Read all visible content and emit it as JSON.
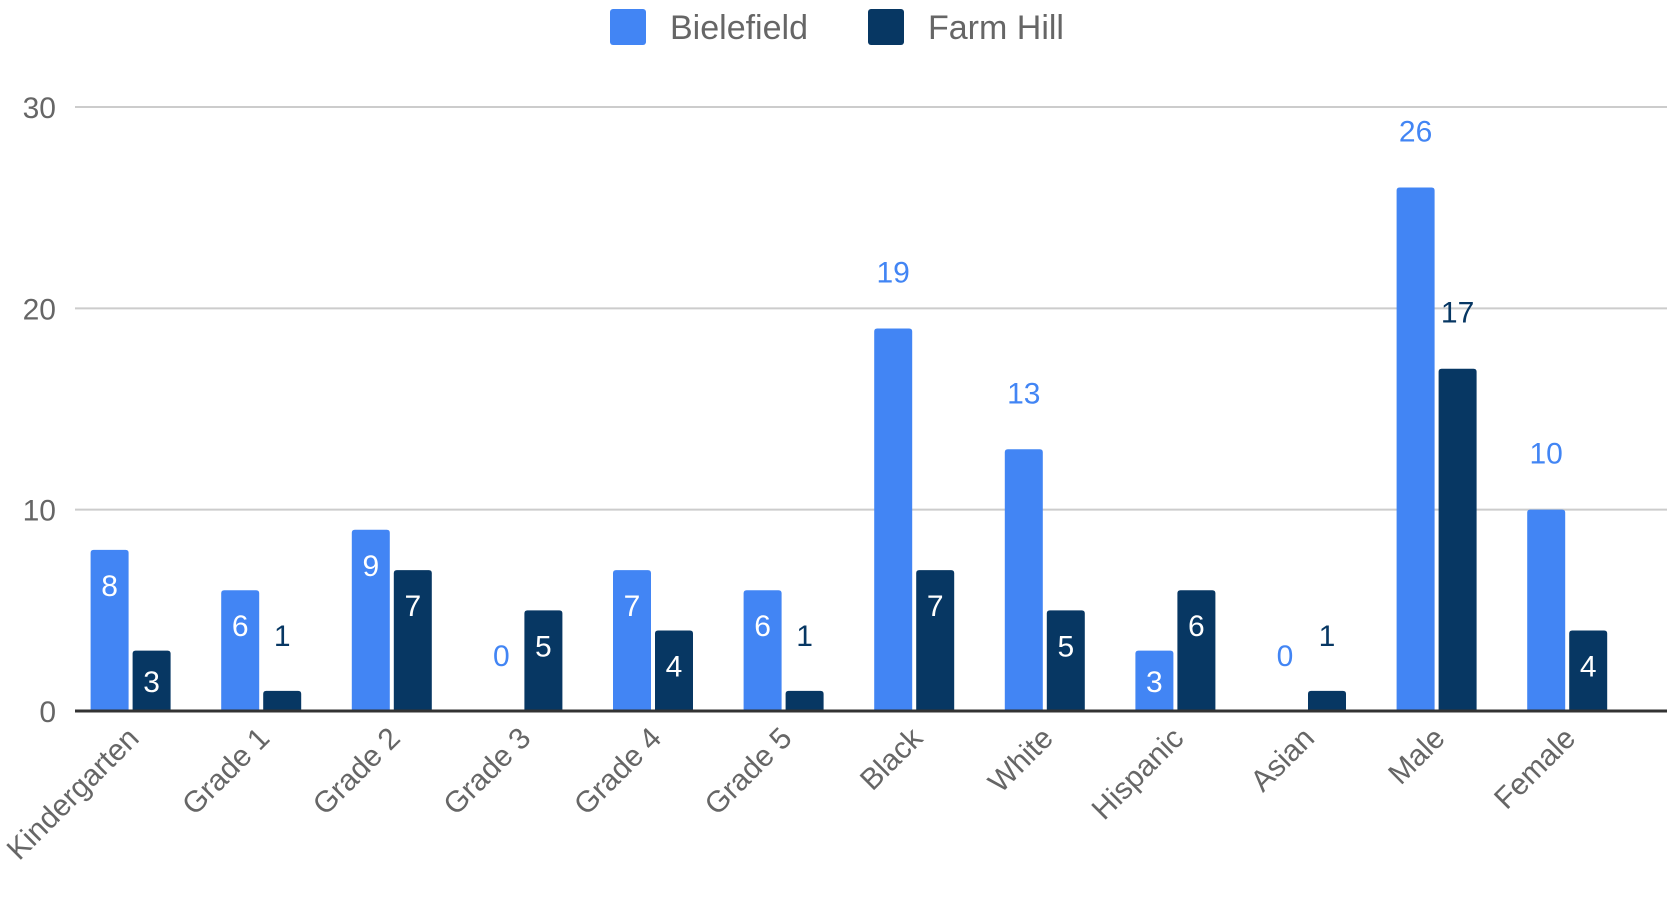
{
  "chart_data": {
    "type": "bar",
    "categories": [
      "Kindergarten",
      "Grade 1",
      "Grade 2",
      "Grade 3",
      "Grade 4",
      "Grade 5",
      "Black",
      "White",
      "Hispanic",
      "Asian",
      "Male",
      "Female"
    ],
    "series": [
      {
        "name": "Bielefield",
        "color": "#4285f4",
        "values": [
          8,
          6,
          9,
          0,
          7,
          6,
          19,
          13,
          3,
          0,
          26,
          10
        ]
      },
      {
        "name": "Farm Hill",
        "color": "#073763",
        "values": [
          3,
          1,
          7,
          5,
          4,
          1,
          7,
          5,
          6,
          1,
          17,
          4
        ]
      }
    ],
    "ylim": [
      0,
      30
    ],
    "yticks": [
      0,
      10,
      20,
      30
    ],
    "grid": true,
    "legend": "top-center",
    "data_labels": true,
    "title": "",
    "xlabel": "",
    "ylabel": ""
  }
}
